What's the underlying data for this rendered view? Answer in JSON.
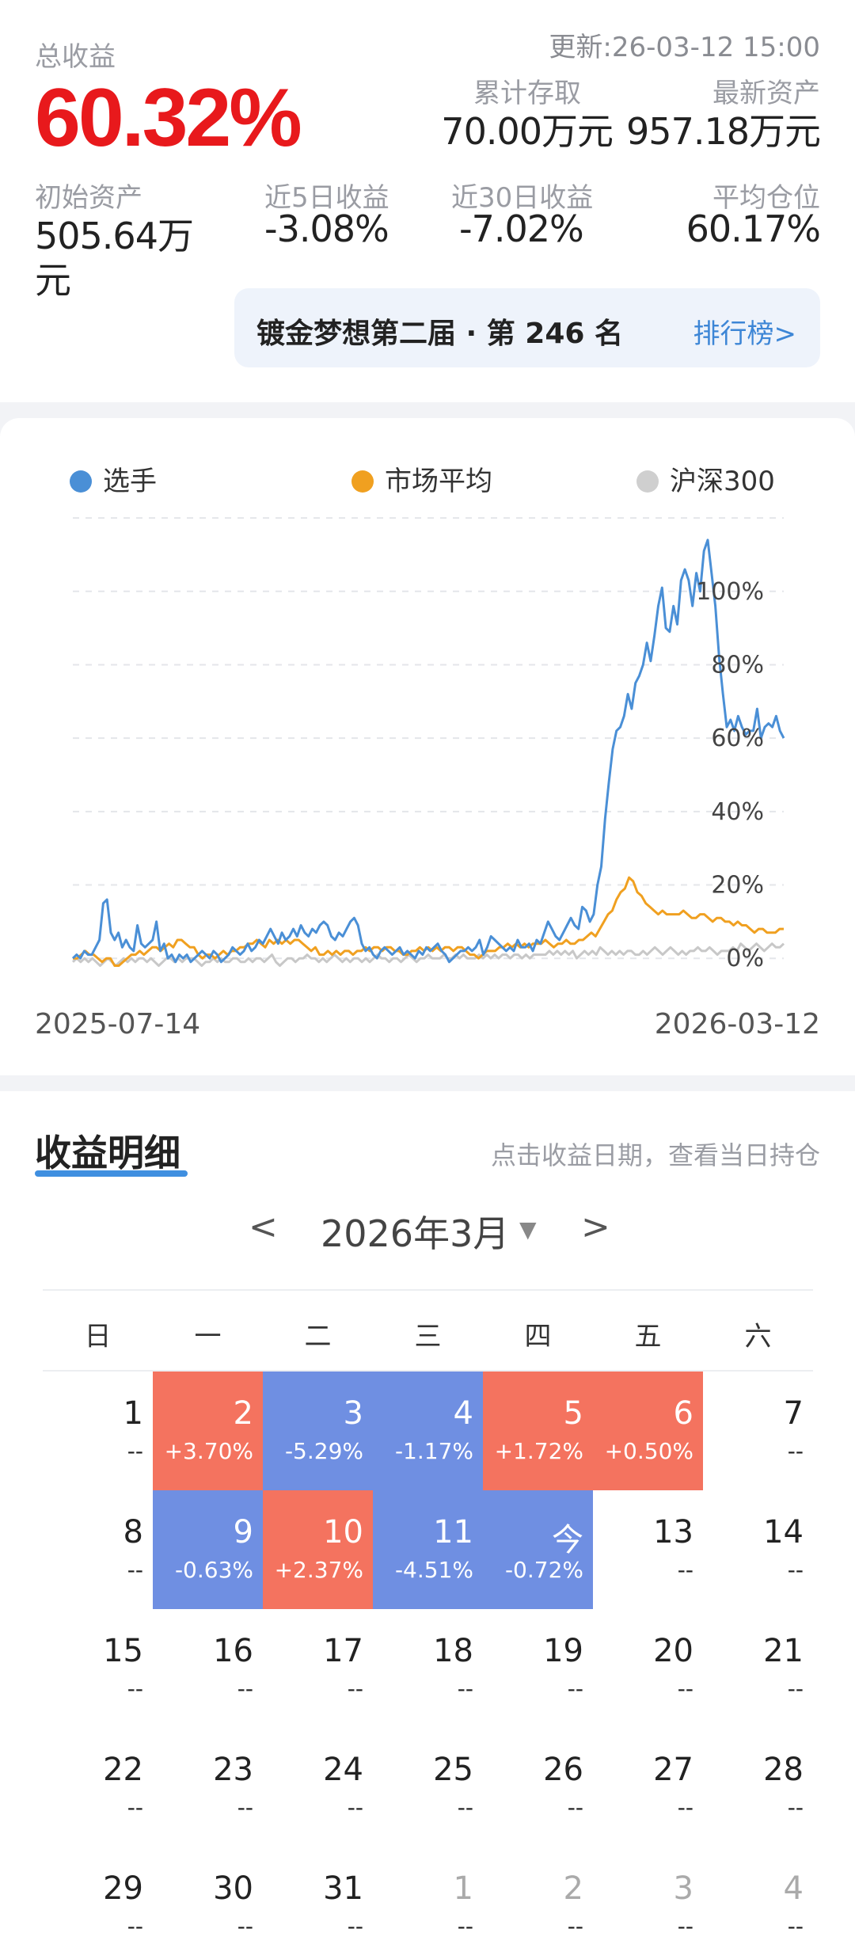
{
  "summary": {
    "total_label": "总收益",
    "total_value": "60.32%",
    "updated": "更新:26-03-12 15:00",
    "cum_deposit_label": "累计存取",
    "cum_deposit_value": "70.00万元",
    "latest_assets_label": "最新资产",
    "latest_assets_value": "957.18万元",
    "initial_assets_label": "初始资产",
    "initial_assets_value_line1": "505.64万",
    "initial_assets_value_line2": "元",
    "r5_label": "近5日收益",
    "r5_value": "-3.08%",
    "r30_label": "近30日收益",
    "r30_value": "-7.02%",
    "avg_pos_label": "平均仓位",
    "avg_pos_value": "60.17%",
    "rank_text": "镀金梦想第二届 · 第 246 名",
    "rank_link": "排行榜>"
  },
  "colors": {
    "player": "#4a8fd6",
    "market": "#f0a020",
    "hs300": "#c8c8c8",
    "up": "#f4735f",
    "down": "#6f8fe2",
    "accent_red": "#e8191c"
  },
  "chart_data": {
    "type": "line",
    "legend": [
      "选手",
      "市场平均",
      "沪深300"
    ],
    "x_start_label": "2025-07-14",
    "x_end_label": "2026-03-12",
    "y_ticks": [
      "0%",
      "20%",
      "40%",
      "60%",
      "80%",
      "100%"
    ],
    "ylim": [
      -6,
      117
    ],
    "series": [
      {
        "name": "选手",
        "values": [
          0,
          1,
          0,
          2,
          1,
          1,
          3,
          5,
          15,
          16,
          7,
          5,
          7,
          3,
          5,
          3,
          2,
          9,
          4,
          3,
          4,
          5,
          10,
          2,
          4,
          0,
          1,
          -1,
          1,
          0,
          1,
          -1,
          0,
          1,
          2,
          1,
          0,
          2,
          1,
          -1,
          0,
          1,
          3,
          2,
          1,
          2,
          4,
          2,
          3,
          5,
          4,
          6,
          8,
          6,
          4,
          7,
          5,
          6,
          8,
          6,
          9,
          7,
          6,
          8,
          7,
          9,
          10,
          9,
          6,
          5,
          7,
          6,
          8,
          10,
          11,
          9,
          4,
          2,
          3,
          1,
          0,
          2,
          3,
          2,
          1,
          2,
          3,
          1,
          2,
          1,
          0,
          2,
          1,
          3,
          2,
          3,
          4,
          2,
          1,
          -1,
          0,
          1,
          2,
          2,
          3,
          2,
          3,
          5,
          1,
          3,
          6,
          5,
          4,
          3,
          2,
          3,
          2,
          5,
          3,
          3,
          4,
          2,
          5,
          4,
          7,
          10,
          8,
          6,
          5,
          7,
          9,
          11,
          9,
          8,
          14,
          13,
          10,
          12,
          20,
          25,
          38,
          48,
          57,
          62,
          63,
          66,
          72,
          68,
          75,
          77,
          80,
          86,
          81,
          88,
          96,
          101,
          90,
          89,
          96,
          91,
          103,
          106,
          103,
          96,
          105,
          100,
          111,
          114,
          105,
          96,
          82,
          72,
          63,
          65,
          62,
          66,
          63,
          61,
          62,
          62,
          68,
          60,
          63,
          64,
          63,
          66,
          62,
          60
        ]
      },
      {
        "name": "市场平均",
        "values": [
          0,
          0,
          1,
          2,
          1,
          1,
          0,
          -1,
          0,
          0,
          -2,
          -2,
          -1,
          0,
          1,
          1,
          2,
          1,
          2,
          3,
          3,
          2,
          3,
          4,
          3,
          5,
          5,
          4,
          3,
          3,
          1,
          0,
          1,
          1,
          0,
          1,
          2,
          1,
          2,
          2,
          3,
          3,
          4,
          4,
          5,
          4,
          3,
          5,
          4,
          5,
          4,
          5,
          4,
          5,
          5,
          4,
          3,
          2,
          3,
          1,
          1,
          2,
          1,
          2,
          1,
          2,
          2,
          1,
          2,
          2,
          3,
          2,
          3,
          3,
          2,
          3,
          3,
          2,
          2,
          1,
          1,
          2,
          2,
          3,
          2,
          3,
          2,
          3,
          2,
          3,
          3,
          2,
          3,
          3,
          2,
          1,
          1,
          0,
          1,
          2,
          2,
          2,
          3,
          3,
          4,
          3,
          4,
          3,
          4,
          3,
          4,
          4,
          4,
          5,
          4,
          3,
          4,
          4,
          5,
          4,
          4,
          5,
          5,
          6,
          7,
          6,
          8,
          10,
          12,
          13,
          16,
          18,
          19,
          22,
          21,
          18,
          17,
          15,
          14,
          13,
          12,
          13,
          12,
          12,
          12,
          12,
          13,
          12,
          11,
          11,
          12,
          12,
          11,
          10,
          11,
          11,
          10,
          10,
          9,
          10,
          9,
          9,
          8,
          7,
          8,
          8,
          7,
          7,
          7,
          8,
          8
        ]
      },
      {
        "name": "沪深300",
        "values": [
          -1,
          0,
          -1,
          0,
          -1,
          0,
          -1,
          -2,
          -1,
          0,
          -1,
          -2,
          -1,
          0,
          -1,
          0,
          -1,
          0,
          0,
          -1,
          0,
          -1,
          -2,
          -1,
          0,
          0,
          -1,
          0,
          -1,
          0,
          0,
          0,
          -1,
          -2,
          -1,
          -1,
          0,
          -1,
          0,
          -1,
          -1,
          0,
          0,
          -1,
          -1,
          0,
          -1,
          0,
          0,
          -1,
          0,
          1,
          -1,
          -2,
          -1,
          0,
          0,
          -1,
          0,
          0,
          1,
          0,
          0,
          -1,
          0,
          -1,
          0,
          1,
          0,
          -1,
          0,
          -1,
          0,
          0,
          -1,
          0,
          -1,
          0,
          1,
          0,
          0,
          -1,
          0,
          0,
          -1,
          0,
          1,
          0,
          -1,
          0,
          0,
          1,
          0,
          0,
          0,
          1,
          0,
          0,
          1,
          0,
          1,
          0,
          0,
          0,
          1,
          0,
          1,
          0,
          1,
          0,
          1,
          1,
          0,
          1,
          1,
          0,
          1,
          0,
          1,
          1,
          1,
          1,
          2,
          1,
          2,
          1,
          2,
          1,
          2,
          0,
          1,
          2,
          1,
          2,
          1,
          3,
          2,
          1,
          2,
          1,
          2,
          1,
          2,
          2,
          1,
          1,
          2,
          1,
          2,
          3,
          2,
          1,
          2,
          3,
          2,
          1,
          2,
          1,
          2,
          2,
          3,
          2,
          2,
          3,
          2,
          1,
          2,
          2,
          2,
          3,
          2,
          4,
          3,
          2,
          3,
          4,
          3,
          2,
          3,
          4,
          3,
          3,
          4
        ]
      }
    ]
  },
  "calendar": {
    "title": "收益明细",
    "hint": "点击收益日期，查看当日持仓",
    "prev": "<",
    "next": ">",
    "month": "2026年3月",
    "caret": "▼",
    "weekdays": [
      "日",
      "一",
      "二",
      "三",
      "四",
      "五",
      "六"
    ],
    "weeks": [
      [
        {
          "d": "1",
          "p": "--",
          "t": ""
        },
        {
          "d": "2",
          "p": "+3.70%",
          "t": "up"
        },
        {
          "d": "3",
          "p": "-5.29%",
          "t": "down"
        },
        {
          "d": "4",
          "p": "-1.17%",
          "t": "down"
        },
        {
          "d": "5",
          "p": "+1.72%",
          "t": "up"
        },
        {
          "d": "6",
          "p": "+0.50%",
          "t": "up"
        },
        {
          "d": "7",
          "p": "--",
          "t": ""
        }
      ],
      [
        {
          "d": "8",
          "p": "--",
          "t": ""
        },
        {
          "d": "9",
          "p": "-0.63%",
          "t": "down"
        },
        {
          "d": "10",
          "p": "+2.37%",
          "t": "up"
        },
        {
          "d": "11",
          "p": "-4.51%",
          "t": "down"
        },
        {
          "d": "今",
          "p": "-0.72%",
          "t": "down"
        },
        {
          "d": "13",
          "p": "--",
          "t": ""
        },
        {
          "d": "14",
          "p": "--",
          "t": ""
        }
      ],
      [
        {
          "d": "15",
          "p": "--",
          "t": ""
        },
        {
          "d": "16",
          "p": "--",
          "t": ""
        },
        {
          "d": "17",
          "p": "--",
          "t": ""
        },
        {
          "d": "18",
          "p": "--",
          "t": ""
        },
        {
          "d": "19",
          "p": "--",
          "t": ""
        },
        {
          "d": "20",
          "p": "--",
          "t": ""
        },
        {
          "d": "21",
          "p": "--",
          "t": ""
        }
      ],
      [
        {
          "d": "22",
          "p": "--",
          "t": ""
        },
        {
          "d": "23",
          "p": "--",
          "t": ""
        },
        {
          "d": "24",
          "p": "--",
          "t": ""
        },
        {
          "d": "25",
          "p": "--",
          "t": ""
        },
        {
          "d": "26",
          "p": "--",
          "t": ""
        },
        {
          "d": "27",
          "p": "--",
          "t": ""
        },
        {
          "d": "28",
          "p": "--",
          "t": ""
        }
      ],
      [
        {
          "d": "29",
          "p": "--",
          "t": ""
        },
        {
          "d": "30",
          "p": "--",
          "t": ""
        },
        {
          "d": "31",
          "p": "--",
          "t": ""
        },
        {
          "d": "1",
          "p": "--",
          "t": "other"
        },
        {
          "d": "2",
          "p": "--",
          "t": "other"
        },
        {
          "d": "3",
          "p": "--",
          "t": "other"
        },
        {
          "d": "4",
          "p": "--",
          "t": "other"
        }
      ]
    ]
  }
}
